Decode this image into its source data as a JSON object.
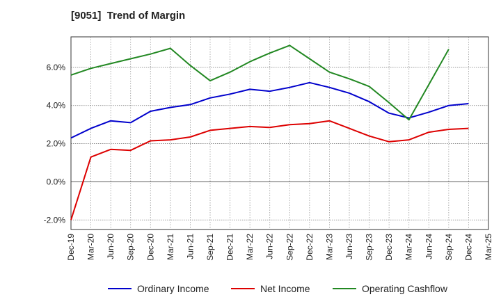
{
  "chart_data": {
    "type": "line",
    "title": "[9051]  Trend of Margin",
    "x": [
      "Dec-19",
      "Mar-20",
      "Jun-20",
      "Sep-20",
      "Dec-20",
      "Mar-21",
      "Jun-21",
      "Sep-21",
      "Dec-21",
      "Mar-22",
      "Jun-22",
      "Sep-22",
      "Dec-22",
      "Mar-23",
      "Jun-23",
      "Sep-23",
      "Dec-23",
      "Mar-24",
      "Jun-24",
      "Sep-24",
      "Dec-24",
      "Mar-25"
    ],
    "ylim": [
      -2.5,
      7.6
    ],
    "yticks": [
      -2.0,
      0.0,
      2.0,
      4.0,
      6.0
    ],
    "ytick_labels": [
      "-2.0%",
      "0.0%",
      "2.0%",
      "4.0%",
      "6.0%"
    ],
    "grid": true,
    "legend_position": "bottom",
    "series": [
      {
        "name": "Ordinary Income",
        "color": "#0000cc",
        "values": [
          2.3,
          2.8,
          3.2,
          3.1,
          3.7,
          3.9,
          4.05,
          4.4,
          4.6,
          4.85,
          4.75,
          4.95,
          5.2,
          4.95,
          4.65,
          4.2,
          3.6,
          3.35,
          3.65,
          4.0,
          4.1,
          null
        ]
      },
      {
        "name": "Net Income",
        "color": "#dd0000",
        "values": [
          -2.0,
          1.3,
          1.7,
          1.65,
          2.15,
          2.2,
          2.35,
          2.7,
          2.8,
          2.9,
          2.85,
          3.0,
          3.05,
          3.2,
          2.8,
          2.4,
          2.1,
          2.2,
          2.6,
          2.75,
          2.8,
          null
        ]
      },
      {
        "name": "Operating Cashflow",
        "color": "#228822",
        "values": [
          5.6,
          5.95,
          6.2,
          6.45,
          6.7,
          7.0,
          6.1,
          5.3,
          5.75,
          6.3,
          6.75,
          7.15,
          6.45,
          5.75,
          5.4,
          5.0,
          4.15,
          3.25,
          5.1,
          6.95,
          null,
          null
        ]
      }
    ]
  }
}
